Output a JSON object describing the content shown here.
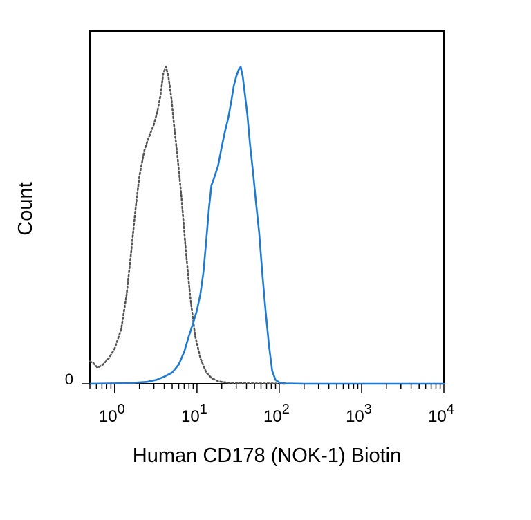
{
  "chart_data": {
    "type": "line",
    "title": "",
    "xlabel": "Human CD178 (NOK-1) Biotin",
    "ylabel": "Count",
    "x_scale": "log",
    "xlim": [
      0.5,
      10000
    ],
    "ylim": [
      0,
      100
    ],
    "grid": false,
    "legend": "none",
    "x_ticks": [
      {
        "value": 1,
        "base": "10",
        "exp": "0"
      },
      {
        "value": 10,
        "base": "10",
        "exp": "1"
      },
      {
        "value": 100,
        "base": "10",
        "exp": "2"
      },
      {
        "value": 1000,
        "base": "10",
        "exp": "3"
      },
      {
        "value": 10000,
        "base": "10",
        "exp": "4"
      }
    ],
    "y_ticks": [
      {
        "value": 0,
        "label": "0"
      }
    ],
    "series": [
      {
        "color": "#555555",
        "style": "dotted",
        "points": [
          [
            0.5,
            7
          ],
          [
            0.55,
            6.5
          ],
          [
            0.62,
            5
          ],
          [
            0.72,
            6
          ],
          [
            0.85,
            8
          ],
          [
            1.0,
            11
          ],
          [
            1.2,
            17
          ],
          [
            1.4,
            28
          ],
          [
            1.6,
            42
          ],
          [
            1.8,
            55
          ],
          [
            2.0,
            65
          ],
          [
            2.3,
            73
          ],
          [
            2.6,
            77
          ],
          [
            3.0,
            81
          ],
          [
            3.3,
            85
          ],
          [
            3.6,
            90
          ],
          [
            3.9,
            97
          ],
          [
            4.2,
            99
          ],
          [
            4.5,
            96
          ],
          [
            4.9,
            89
          ],
          [
            5.3,
            80
          ],
          [
            5.8,
            71
          ],
          [
            6.5,
            58
          ],
          [
            7.3,
            42
          ],
          [
            8.3,
            27
          ],
          [
            9.5,
            15
          ],
          [
            11,
            8
          ],
          [
            13,
            3.5
          ],
          [
            15,
            1.8
          ],
          [
            18,
            0.8
          ],
          [
            22,
            0.4
          ],
          [
            30,
            0.2
          ],
          [
            50,
            0.1
          ],
          [
            80,
            0.1
          ],
          [
            120,
            0
          ]
        ]
      },
      {
        "color": "#1f7ad2",
        "style": "solid",
        "points": [
          [
            0.5,
            0
          ],
          [
            1.5,
            0.2
          ],
          [
            2.5,
            0.6
          ],
          [
            3.2,
            1.2
          ],
          [
            4.0,
            2.2
          ],
          [
            5.0,
            3.5
          ],
          [
            6.0,
            6
          ],
          [
            7.0,
            10
          ],
          [
            8.0,
            15
          ],
          [
            9.0,
            19
          ],
          [
            10,
            23
          ],
          [
            11,
            28
          ],
          [
            12,
            35
          ],
          [
            13,
            45
          ],
          [
            14,
            55
          ],
          [
            15,
            62
          ],
          [
            16,
            64
          ],
          [
            18,
            68
          ],
          [
            20,
            74
          ],
          [
            22,
            79
          ],
          [
            24,
            83
          ],
          [
            26,
            88
          ],
          [
            28,
            93
          ],
          [
            30,
            96
          ],
          [
            32,
            98
          ],
          [
            34,
            99
          ],
          [
            36,
            96
          ],
          [
            38,
            91
          ],
          [
            41,
            84
          ],
          [
            44,
            75
          ],
          [
            48,
            66
          ],
          [
            52,
            57
          ],
          [
            57,
            47
          ],
          [
            62,
            35
          ],
          [
            68,
            23
          ],
          [
            75,
            12
          ],
          [
            82,
            4
          ],
          [
            90,
            1.2
          ],
          [
            100,
            0.4
          ],
          [
            120,
            0.1
          ],
          [
            200,
            0
          ],
          [
            1000,
            0
          ],
          [
            10000,
            0
          ]
        ]
      }
    ]
  }
}
